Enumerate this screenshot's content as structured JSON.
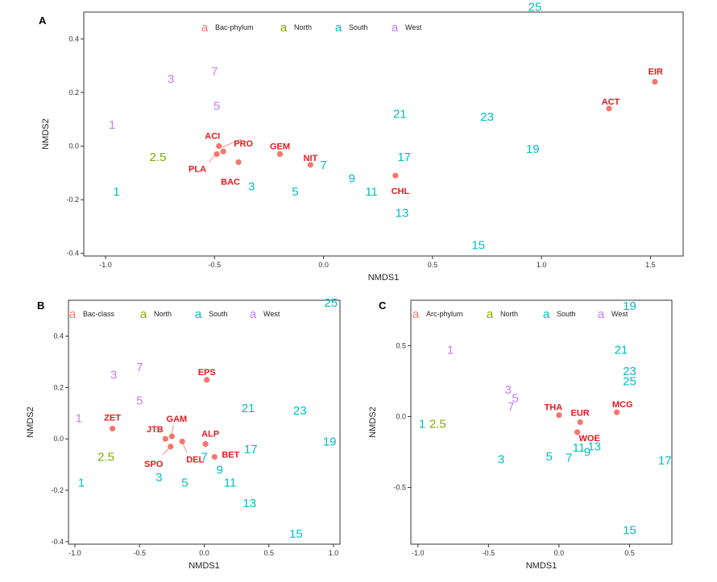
{
  "colors": {
    "taxa": "#F8766D",
    "taxa_text": "#E41A1C",
    "North": "#7CAE00",
    "South": "#00BFC4",
    "West": "#C77CFF"
  },
  "chart_data": [
    {
      "type": "scatter",
      "panel": "A",
      "xlabel": "NMDS1",
      "ylabel": "NMDS2",
      "xlim": [
        -1.1,
        1.65
      ],
      "ylim": [
        -0.41,
        0.5
      ],
      "xticks": [
        -1.0,
        -0.5,
        0.0,
        0.5,
        1.0,
        1.5
      ],
      "xtick_labels": [
        "-1.0",
        "-0.5",
        "0.0",
        "0.5",
        "1.0",
        "1.5"
      ],
      "yticks": [
        -0.4,
        -0.2,
        0.0,
        0.2,
        0.4
      ],
      "ytick_labels": [
        "-0.4",
        "-0.2",
        "0.0",
        "0.2",
        "0.4"
      ],
      "grid": false,
      "legend": {
        "placement": "top-center",
        "items": [
          {
            "key": "a",
            "label": "Bac-phylum",
            "group": "taxa"
          },
          {
            "key": "a",
            "label": "North",
            "group": "North"
          },
          {
            "key": "a",
            "label": "South",
            "group": "South"
          },
          {
            "key": "a",
            "label": "West",
            "group": "West"
          }
        ]
      },
      "sites": [
        {
          "label": "25",
          "x": 0.97,
          "y": 0.52,
          "group": "South"
        },
        {
          "label": "7",
          "x": -0.5,
          "y": 0.28,
          "group": "West"
        },
        {
          "label": "3",
          "x": -0.7,
          "y": 0.25,
          "group": "West"
        },
        {
          "label": "5",
          "x": -0.49,
          "y": 0.15,
          "group": "West"
        },
        {
          "label": "1",
          "x": -0.97,
          "y": 0.08,
          "group": "West"
        },
        {
          "label": "2.5",
          "x": -0.76,
          "y": -0.04,
          "group": "North"
        },
        {
          "label": "1",
          "x": -0.95,
          "y": -0.17,
          "group": "South"
        },
        {
          "label": "3",
          "x": -0.33,
          "y": -0.15,
          "group": "South"
        },
        {
          "label": "5",
          "x": -0.13,
          "y": -0.17,
          "group": "South"
        },
        {
          "label": "7",
          "x": 0.0,
          "y": -0.07,
          "group": "South"
        },
        {
          "label": "9",
          "x": 0.13,
          "y": -0.12,
          "group": "South"
        },
        {
          "label": "11",
          "x": 0.22,
          "y": -0.17,
          "group": "South"
        },
        {
          "label": "13",
          "x": 0.36,
          "y": -0.25,
          "group": "South"
        },
        {
          "label": "15",
          "x": 0.71,
          "y": -0.37,
          "group": "South"
        },
        {
          "label": "17",
          "x": 0.37,
          "y": -0.04,
          "group": "South"
        },
        {
          "label": "19",
          "x": 0.96,
          "y": -0.01,
          "group": "South"
        },
        {
          "label": "21",
          "x": 0.35,
          "y": 0.12,
          "group": "South"
        },
        {
          "label": "23",
          "x": 0.75,
          "y": 0.11,
          "group": "South"
        }
      ],
      "taxa": [
        {
          "label": "ACI",
          "x": -0.48,
          "y": 0.0
        },
        {
          "label": "PRO",
          "x": -0.46,
          "y": -0.02
        },
        {
          "label": "PLA",
          "x": -0.49,
          "y": -0.03
        },
        {
          "label": "BAC",
          "x": -0.39,
          "y": -0.06
        },
        {
          "label": "GEM",
          "x": -0.2,
          "y": -0.03
        },
        {
          "label": "NIT",
          "x": -0.06,
          "y": -0.07
        },
        {
          "label": "CHL",
          "x": 0.33,
          "y": -0.11
        },
        {
          "label": "ACT",
          "x": 1.31,
          "y": 0.14
        },
        {
          "label": "EIR",
          "x": 1.52,
          "y": 0.24
        }
      ]
    },
    {
      "type": "scatter",
      "panel": "B",
      "xlabel": "NMDS1",
      "ylabel": "NMDS2",
      "xlim": [
        -1.05,
        1.05
      ],
      "ylim": [
        -0.41,
        0.54
      ],
      "xticks": [
        -1.0,
        -0.5,
        0.0,
        0.5,
        1.0
      ],
      "xtick_labels": [
        "-1.0",
        "-0.5",
        "0.0",
        "0.5",
        "1.0"
      ],
      "yticks": [
        -0.4,
        -0.2,
        0.0,
        0.2,
        0.4
      ],
      "ytick_labels": [
        "-0.4",
        "-0.2",
        "0.0",
        "0.2",
        "0.4"
      ],
      "grid": false,
      "legend": {
        "placement": "top",
        "items": [
          {
            "key": "a",
            "label": "Bac-class",
            "group": "taxa"
          },
          {
            "key": "a",
            "label": "North",
            "group": "North"
          },
          {
            "key": "a",
            "label": "South",
            "group": "South"
          },
          {
            "key": "a",
            "label": "West",
            "group": "West"
          }
        ]
      },
      "sites": [
        {
          "label": "25",
          "x": 0.98,
          "y": 0.53,
          "group": "South"
        },
        {
          "label": "7",
          "x": -0.5,
          "y": 0.28,
          "group": "West"
        },
        {
          "label": "3",
          "x": -0.7,
          "y": 0.25,
          "group": "West"
        },
        {
          "label": "5",
          "x": -0.5,
          "y": 0.15,
          "group": "West"
        },
        {
          "label": "1",
          "x": -0.97,
          "y": 0.08,
          "group": "West"
        },
        {
          "label": "2.5",
          "x": -0.76,
          "y": -0.07,
          "group": "North"
        },
        {
          "label": "1",
          "x": -0.95,
          "y": -0.17,
          "group": "South"
        },
        {
          "label": "3",
          "x": -0.35,
          "y": -0.15,
          "group": "South"
        },
        {
          "label": "5",
          "x": -0.15,
          "y": -0.17,
          "group": "South"
        },
        {
          "label": "7",
          "x": 0.0,
          "y": -0.07,
          "group": "South"
        },
        {
          "label": "9",
          "x": 0.12,
          "y": -0.12,
          "group": "South"
        },
        {
          "label": "11",
          "x": 0.2,
          "y": -0.17,
          "group": "South"
        },
        {
          "label": "13",
          "x": 0.35,
          "y": -0.25,
          "group": "South"
        },
        {
          "label": "15",
          "x": 0.71,
          "y": -0.37,
          "group": "South"
        },
        {
          "label": "17",
          "x": 0.36,
          "y": -0.04,
          "group": "South"
        },
        {
          "label": "19",
          "x": 0.97,
          "y": -0.01,
          "group": "South"
        },
        {
          "label": "21",
          "x": 0.34,
          "y": 0.12,
          "group": "South"
        },
        {
          "label": "23",
          "x": 0.74,
          "y": 0.11,
          "group": "South"
        }
      ],
      "taxa": [
        {
          "label": "EPS",
          "x": 0.02,
          "y": 0.23
        },
        {
          "label": "ZET",
          "x": -0.71,
          "y": 0.04
        },
        {
          "label": "JTB",
          "x": -0.3,
          "y": 0.0
        },
        {
          "label": "GAM",
          "x": -0.25,
          "y": 0.01
        },
        {
          "label": "SPO",
          "x": -0.26,
          "y": -0.03
        },
        {
          "label": "DEL",
          "x": -0.17,
          "y": -0.01
        },
        {
          "label": "ALP",
          "x": 0.01,
          "y": -0.02
        },
        {
          "label": "BET",
          "x": 0.08,
          "y": -0.07
        }
      ]
    },
    {
      "type": "scatter",
      "panel": "C",
      "xlabel": "NMDS1",
      "ylabel": "NMDS2",
      "xlim": [
        -1.05,
        0.8
      ],
      "ylim": [
        -0.9,
        0.82
      ],
      "xticks": [
        -1.0,
        -0.5,
        0.0,
        0.5
      ],
      "xtick_labels": [
        "-1.0",
        "-0.5",
        "0.0",
        "0.5"
      ],
      "yticks": [
        -0.5,
        0.0,
        0.5
      ],
      "ytick_labels": [
        "-0.5",
        "0.0",
        "0.5"
      ],
      "grid": false,
      "legend": {
        "placement": "top",
        "items": [
          {
            "key": "a",
            "label": "Arc-phylum",
            "group": "taxa"
          },
          {
            "key": "a",
            "label": "North",
            "group": "North"
          },
          {
            "key": "a",
            "label": "South",
            "group": "South"
          },
          {
            "key": "a",
            "label": "West",
            "group": "West"
          }
        ]
      },
      "sites": [
        {
          "label": "19",
          "x": 0.5,
          "y": 0.78,
          "group": "South"
        },
        {
          "label": "1",
          "x": -0.77,
          "y": 0.47,
          "group": "West"
        },
        {
          "label": "21",
          "x": 0.44,
          "y": 0.47,
          "group": "South"
        },
        {
          "label": "23",
          "x": 0.5,
          "y": 0.32,
          "group": "South"
        },
        {
          "label": "25",
          "x": 0.5,
          "y": 0.25,
          "group": "South"
        },
        {
          "label": "3",
          "x": -0.36,
          "y": 0.19,
          "group": "West"
        },
        {
          "label": "5",
          "x": -0.31,
          "y": 0.13,
          "group": "West"
        },
        {
          "label": "7",
          "x": -0.34,
          "y": 0.07,
          "group": "West"
        },
        {
          "label": "1",
          "x": -0.97,
          "y": -0.05,
          "group": "South"
        },
        {
          "label": "2.5",
          "x": -0.86,
          "y": -0.05,
          "group": "North"
        },
        {
          "label": "11",
          "x": 0.14,
          "y": -0.22,
          "group": "South"
        },
        {
          "label": "13",
          "x": 0.25,
          "y": -0.21,
          "group": "South"
        },
        {
          "label": "9",
          "x": 0.2,
          "y": -0.25,
          "group": "South"
        },
        {
          "label": "5",
          "x": -0.07,
          "y": -0.28,
          "group": "South"
        },
        {
          "label": "7",
          "x": 0.07,
          "y": -0.29,
          "group": "South"
        },
        {
          "label": "3",
          "x": -0.41,
          "y": -0.3,
          "group": "South"
        },
        {
          "label": "17",
          "x": 0.75,
          "y": -0.31,
          "group": "South"
        },
        {
          "label": "15",
          "x": 0.5,
          "y": -0.8,
          "group": "South"
        }
      ],
      "taxa": [
        {
          "label": "THA",
          "x": 0.0,
          "y": 0.01
        },
        {
          "label": "EUR",
          "x": 0.15,
          "y": -0.04
        },
        {
          "label": "WOE",
          "x": 0.13,
          "y": -0.11
        },
        {
          "label": "MCG",
          "x": 0.41,
          "y": 0.03
        }
      ]
    }
  ]
}
